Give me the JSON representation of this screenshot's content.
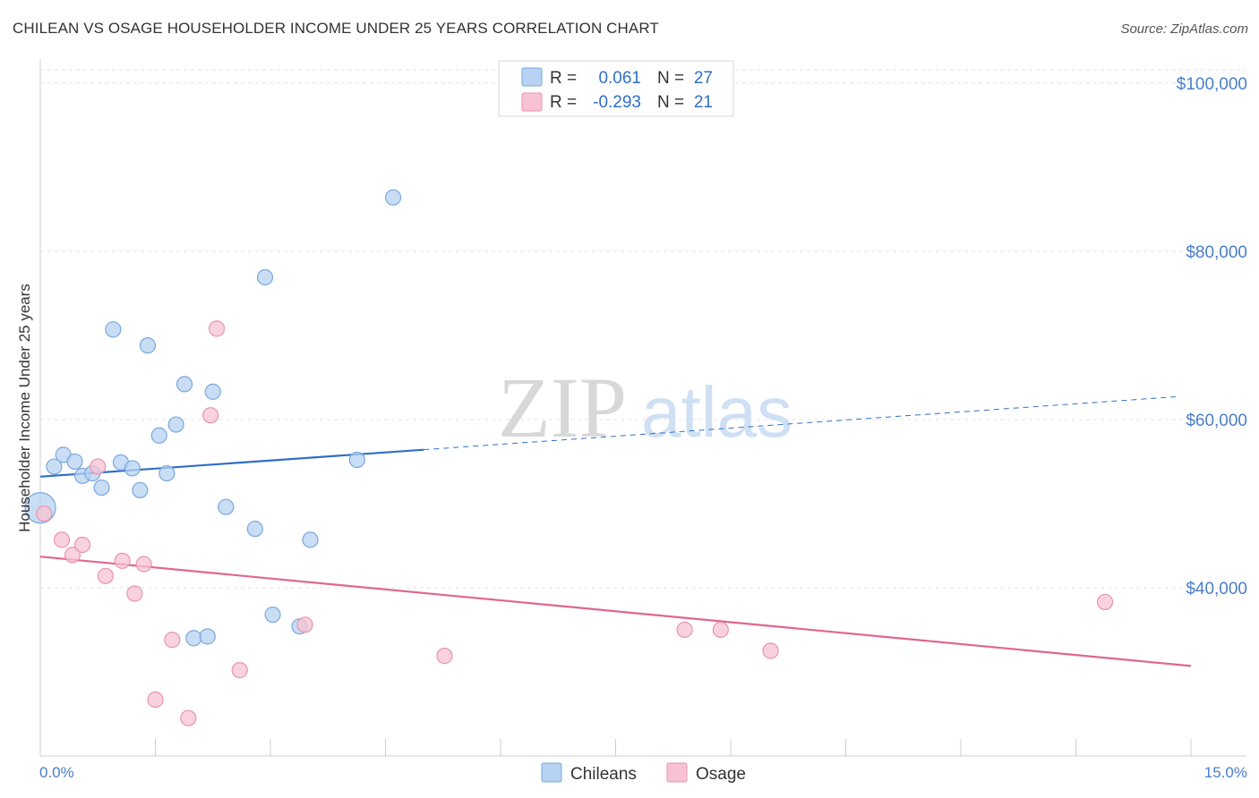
{
  "title": "CHILEAN VS OSAGE HOUSEHOLDER INCOME UNDER 25 YEARS CORRELATION CHART",
  "source": "Source: ZipAtlas.com",
  "watermark": {
    "zip": "ZIP",
    "atlas": "atlas"
  },
  "colors": {
    "blue_fill": "#b7d2f2",
    "blue_stroke": "#7aa8de",
    "blue_line": "#2f6fc6",
    "pink_fill": "#f7c3d2",
    "pink_stroke": "#ea93ae",
    "pink_line": "#e0668f",
    "tick_text": "#4a7fc9",
    "grid": "#e3e3e3"
  },
  "legend": {
    "rows": [
      {
        "r_label": "R =",
        "r_value": "0.061",
        "n_label": "N =",
        "n_value": "27",
        "series": "blue"
      },
      {
        "r_label": "R =",
        "r_value": "-0.293",
        "n_label": "N =",
        "n_value": "21",
        "series": "pink"
      }
    ]
  },
  "chart_data": {
    "type": "scatter",
    "title": "CHILEAN VS OSAGE HOUSEHOLDER INCOME UNDER 25 YEARS CORRELATION CHART",
    "xlabel": "",
    "ylabel": "Householder Income Under 25 years",
    "xlim": [
      0,
      15
    ],
    "ylim": [
      20000,
      102000
    ],
    "x_tick_labels": [
      {
        "value": 0,
        "label": "0.0%"
      },
      {
        "value": 15,
        "label": "15.0%"
      }
    ],
    "y_ticks": [
      {
        "value": 100000,
        "label": "$100,000"
      },
      {
        "value": 80000,
        "label": "$80,000"
      },
      {
        "value": 60000,
        "label": "$60,000"
      },
      {
        "value": 40000,
        "label": "$40,000"
      }
    ],
    "series": [
      {
        "name": "Chileans",
        "color": "blue",
        "points": [
          {
            "x": 0.0,
            "y": 49500,
            "size": "large"
          },
          {
            "x": 0.18,
            "y": 54400
          },
          {
            "x": 0.3,
            "y": 55800
          },
          {
            "x": 0.45,
            "y": 55000
          },
          {
            "x": 0.55,
            "y": 53300
          },
          {
            "x": 0.68,
            "y": 53600
          },
          {
            "x": 0.8,
            "y": 51900
          },
          {
            "x": 0.95,
            "y": 70700
          },
          {
            "x": 1.05,
            "y": 54900
          },
          {
            "x": 1.2,
            "y": 54200
          },
          {
            "x": 1.3,
            "y": 51600
          },
          {
            "x": 1.4,
            "y": 68800
          },
          {
            "x": 1.55,
            "y": 58100
          },
          {
            "x": 1.65,
            "y": 53600
          },
          {
            "x": 1.77,
            "y": 59400
          },
          {
            "x": 1.88,
            "y": 64200
          },
          {
            "x": 2.0,
            "y": 34000
          },
          {
            "x": 2.18,
            "y": 34200
          },
          {
            "x": 2.25,
            "y": 63300
          },
          {
            "x": 2.42,
            "y": 49600
          },
          {
            "x": 2.8,
            "y": 47000
          },
          {
            "x": 2.93,
            "y": 76900
          },
          {
            "x": 3.03,
            "y": 36800
          },
          {
            "x": 3.38,
            "y": 35400
          },
          {
            "x": 3.52,
            "y": 45700
          },
          {
            "x": 4.13,
            "y": 55200
          },
          {
            "x": 4.6,
            "y": 86400
          }
        ],
        "trend": {
          "x0": 0,
          "y0": 53200,
          "x_solid_end": 5.0,
          "x1": 14.8,
          "y1": 62700
        }
      },
      {
        "name": "Osage",
        "color": "pink",
        "points": [
          {
            "x": 0.05,
            "y": 48800
          },
          {
            "x": 0.28,
            "y": 45700
          },
          {
            "x": 0.42,
            "y": 43900
          },
          {
            "x": 0.55,
            "y": 45100
          },
          {
            "x": 0.75,
            "y": 54400
          },
          {
            "x": 0.85,
            "y": 41400
          },
          {
            "x": 1.07,
            "y": 43200
          },
          {
            "x": 1.23,
            "y": 39300
          },
          {
            "x": 1.35,
            "y": 42800
          },
          {
            "x": 1.5,
            "y": 26700
          },
          {
            "x": 1.72,
            "y": 33800
          },
          {
            "x": 1.93,
            "y": 24500
          },
          {
            "x": 2.22,
            "y": 60500
          },
          {
            "x": 2.3,
            "y": 70800
          },
          {
            "x": 2.6,
            "y": 30200
          },
          {
            "x": 3.45,
            "y": 35600
          },
          {
            "x": 5.27,
            "y": 31900
          },
          {
            "x": 8.4,
            "y": 35000
          },
          {
            "x": 8.87,
            "y": 35000
          },
          {
            "x": 9.52,
            "y": 32500
          },
          {
            "x": 13.88,
            "y": 38300
          }
        ],
        "trend": {
          "x0": 0,
          "y0": 43700,
          "x_solid_end": 15,
          "x1": 15,
          "y1": 30700
        }
      }
    ]
  },
  "bottom_legend": [
    {
      "label": "Chileans",
      "color": "blue"
    },
    {
      "label": "Osage",
      "color": "pink"
    }
  ]
}
